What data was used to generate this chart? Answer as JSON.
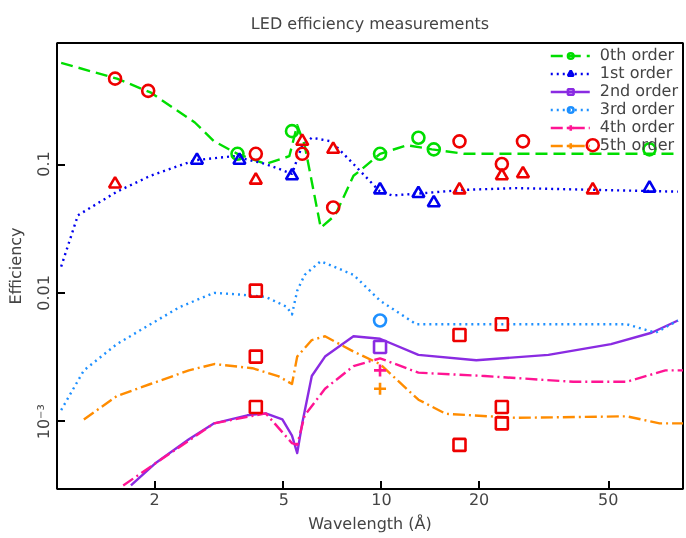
{
  "chart_data": {
    "type": "line",
    "title": "LED efficiency measurements",
    "xlabel": "Wavelength (Å)",
    "ylabel": "Efficiency",
    "log": "xy",
    "grid": false,
    "legend": "top right",
    "xlim": [
      1,
      85
    ],
    "xticks": [
      2,
      5,
      10,
      20,
      50
    ],
    "ylim": [
      0.0003,
      0.87
    ],
    "yticks": [
      {
        "value": 0.1,
        "label": "0.1"
      },
      {
        "value": 0.01,
        "label": "0.01"
      },
      {
        "value": 0.001,
        "label": "10⁻³"
      }
    ],
    "series": [
      {
        "name": "0th order",
        "color": "#00dd00",
        "line_style": "dashed",
        "x": [
          1.03,
          1.53,
          1.94,
          2.66,
          3.05,
          3.6,
          4.4,
          5.2,
          5.5,
          5.8,
          6.5,
          7.2,
          8.2,
          8.5,
          9.9,
          12,
          14.3,
          18,
          26,
          82
        ],
        "values": [
          0.61,
          0.46,
          0.36,
          0.21,
          0.15,
          0.12,
          0.1,
          0.115,
          0.2,
          0.14,
          0.032,
          0.04,
          0.081,
          0.087,
          0.12,
          0.14,
          0.13,
          0.12,
          0.12,
          0.12
        ]
      },
      {
        "name": "1st order",
        "color": "#0000ee",
        "line_style": "dotted",
        "x": [
          1.03,
          1.16,
          1.53,
          1.94,
          2.66,
          3.5,
          4.4,
          5.3,
          5.7,
          6.1,
          7.0,
          8.2,
          9.9,
          10.8,
          13,
          18,
          26,
          82
        ],
        "values": [
          0.016,
          0.04,
          0.061,
          0.081,
          0.107,
          0.115,
          0.1,
          0.084,
          0.14,
          0.16,
          0.15,
          0.1,
          0.061,
          0.057,
          0.059,
          0.063,
          0.065,
          0.061
        ]
      },
      {
        "name": "2nd order",
        "color": "#8a2be2",
        "line_style": "solid",
        "x": [
          1.69,
          2.02,
          2.55,
          3.05,
          3.86,
          4.4,
          4.95,
          5.3,
          5.5,
          5.7,
          6.1,
          6.7,
          8.2,
          9.9,
          13,
          19.6,
          32.7,
          51,
          68,
          82
        ],
        "values": [
          0.00032,
          0.00048,
          0.00073,
          0.00097,
          0.00112,
          0.00116,
          0.00104,
          0.00078,
          0.00057,
          0.00097,
          0.00226,
          0.0032,
          0.0046,
          0.0044,
          0.0033,
          0.003,
          0.0033,
          0.004,
          0.0049,
          0.0061
        ]
      },
      {
        "name": "3rd order",
        "color": "#1e90ff",
        "line_style": "dotted",
        "x": [
          1.03,
          1.21,
          1.53,
          1.94,
          2.4,
          3.05,
          3.65,
          4.4,
          5.1,
          5.3,
          5.5,
          5.8,
          6.5,
          8.2,
          9.9,
          12.8,
          26,
          57,
          70,
          82
        ],
        "values": [
          0.00123,
          0.0025,
          0.004,
          0.0057,
          0.0078,
          0.01,
          0.0097,
          0.0093,
          0.0078,
          0.0068,
          0.0104,
          0.0138,
          0.0176,
          0.0138,
          0.0087,
          0.0057,
          0.0057,
          0.0057,
          0.0049,
          0.0061
        ]
      },
      {
        "name": "4th order",
        "color": "#ff1493",
        "line_style": "dashdot",
        "x": [
          1.6,
          3.05,
          4.4,
          5.3,
          5.5,
          5.8,
          6.7,
          8.2,
          9.9,
          13,
          20.8,
          39,
          57,
          75,
          85
        ],
        "values": [
          0.00032,
          0.00097,
          0.00116,
          0.00068,
          0.00066,
          0.00112,
          0.0018,
          0.0027,
          0.0031,
          0.0024,
          0.00226,
          0.00204,
          0.00204,
          0.0025,
          0.0025
        ]
      },
      {
        "name": "5th order",
        "color": "#ff8c00",
        "line_style": "dashdot",
        "x": [
          1.21,
          1.53,
          1.94,
          2.55,
          3.05,
          4.0,
          4.8,
          5.3,
          5.5,
          6.1,
          6.7,
          8.2,
          9.9,
          13,
          15.8,
          26,
          57,
          72,
          85
        ],
        "values": [
          0.00104,
          0.00158,
          0.00196,
          0.0025,
          0.0028,
          0.0026,
          0.00226,
          0.00196,
          0.0032,
          0.0043,
          0.0046,
          0.0035,
          0.0028,
          0.00148,
          0.00115,
          0.00107,
          0.0011,
          0.00097,
          0.00097
        ]
      },
      {
        "type": "scatter",
        "color": "#00dd00",
        "marker": "circle",
        "x": [
          3.6,
          5.3,
          9.9,
          13,
          14.5,
          67
        ],
        "values": [
          0.12,
          0.18,
          0.12,
          0.16,
          0.13,
          0.13
        ]
      },
      {
        "type": "scatter",
        "color": "#0000ee",
        "marker": "triangle",
        "x": [
          2.7,
          3.65,
          5.3,
          9.9,
          13,
          14.5,
          67
        ],
        "values": [
          0.107,
          0.107,
          0.081,
          0.063,
          0.059,
          0.05,
          0.065
        ]
      },
      {
        "type": "scatter",
        "color": "#8a2be2",
        "marker": "square",
        "x": [
          9.9
        ],
        "values": [
          0.0038
        ]
      },
      {
        "type": "scatter",
        "color": "#1e90ff",
        "marker": "circle",
        "x": [
          9.9
        ],
        "values": [
          0.0061
        ]
      },
      {
        "type": "scatter",
        "color": "#ff1493",
        "marker": "cross",
        "x": [
          9.9
        ],
        "values": [
          0.0025
        ]
      },
      {
        "type": "scatter",
        "color": "#ff8c00",
        "marker": "cross",
        "x": [
          9.9
        ],
        "values": [
          0.0018
        ]
      },
      {
        "type": "scatter",
        "color": "#ee0000",
        "marker": "circle",
        "x": [
          1.51,
          1.91,
          4.1,
          5.7,
          7.1,
          17.4,
          27.3,
          44.8,
          23.5
        ],
        "values": [
          0.46,
          0.37,
          0.12,
          0.12,
          0.046,
          0.15,
          0.15,
          0.14,
          0.1
        ]
      },
      {
        "type": "scatter",
        "color": "#ee0000",
        "marker": "triangle",
        "x": [
          1.51,
          4.1,
          5.7,
          7.1,
          17.4,
          23.5,
          27.3,
          44.8
        ],
        "values": [
          0.07,
          0.075,
          0.15,
          0.13,
          0.063,
          0.081,
          0.084,
          0.063
        ]
      },
      {
        "type": "scatter",
        "color": "#ee0000",
        "marker": "square",
        "x": [
          4.1,
          4.1,
          4.1,
          23.5,
          17.4,
          23.5,
          23.5,
          17.4
        ],
        "values": [
          0.0104,
          0.0013,
          0.0032,
          0.0057,
          0.0047,
          0.0013,
          0.00097,
          0.00066
        ]
      }
    ]
  }
}
